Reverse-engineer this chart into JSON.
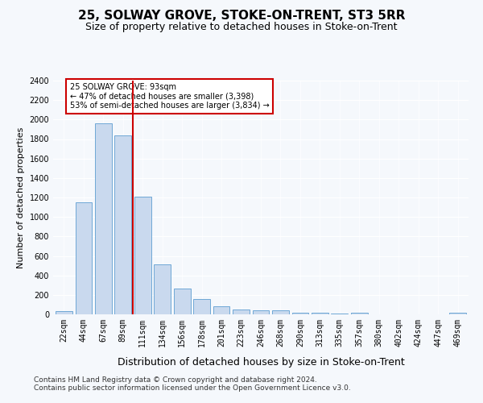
{
  "title": "25, SOLWAY GROVE, STOKE-ON-TRENT, ST3 5RR",
  "subtitle": "Size of property relative to detached houses in Stoke-on-Trent",
  "xlabel": "Distribution of detached houses by size in Stoke-on-Trent",
  "ylabel": "Number of detached properties",
  "categories": [
    "22sqm",
    "44sqm",
    "67sqm",
    "89sqm",
    "111sqm",
    "134sqm",
    "156sqm",
    "178sqm",
    "201sqm",
    "223sqm",
    "246sqm",
    "268sqm",
    "290sqm",
    "313sqm",
    "335sqm",
    "357sqm",
    "380sqm",
    "402sqm",
    "424sqm",
    "447sqm",
    "469sqm"
  ],
  "values": [
    30,
    1150,
    1960,
    1840,
    1210,
    510,
    265,
    155,
    80,
    50,
    45,
    40,
    20,
    20,
    12,
    20,
    0,
    0,
    0,
    0,
    20
  ],
  "bar_color": "#c9d9ee",
  "bar_edge_color": "#6fa8d6",
  "vline_color": "#cc0000",
  "annotation_text": "25 SOLWAY GROVE: 93sqm\n← 47% of detached houses are smaller (3,398)\n53% of semi-detached houses are larger (3,834) →",
  "annotation_box_color": "#cc0000",
  "ylim": [
    0,
    2400
  ],
  "yticks": [
    0,
    200,
    400,
    600,
    800,
    1000,
    1200,
    1400,
    1600,
    1800,
    2000,
    2200,
    2400
  ],
  "footer_line1": "Contains HM Land Registry data © Crown copyright and database right 2024.",
  "footer_line2": "Contains public sector information licensed under the Open Government Licence v3.0.",
  "bg_color": "#f5f8fc",
  "plot_bg_color": "#f5f8fc",
  "title_fontsize": 11,
  "subtitle_fontsize": 9,
  "xlabel_fontsize": 9,
  "ylabel_fontsize": 8,
  "tick_fontsize": 7,
  "footer_fontsize": 6.5,
  "vline_x": 3.5
}
